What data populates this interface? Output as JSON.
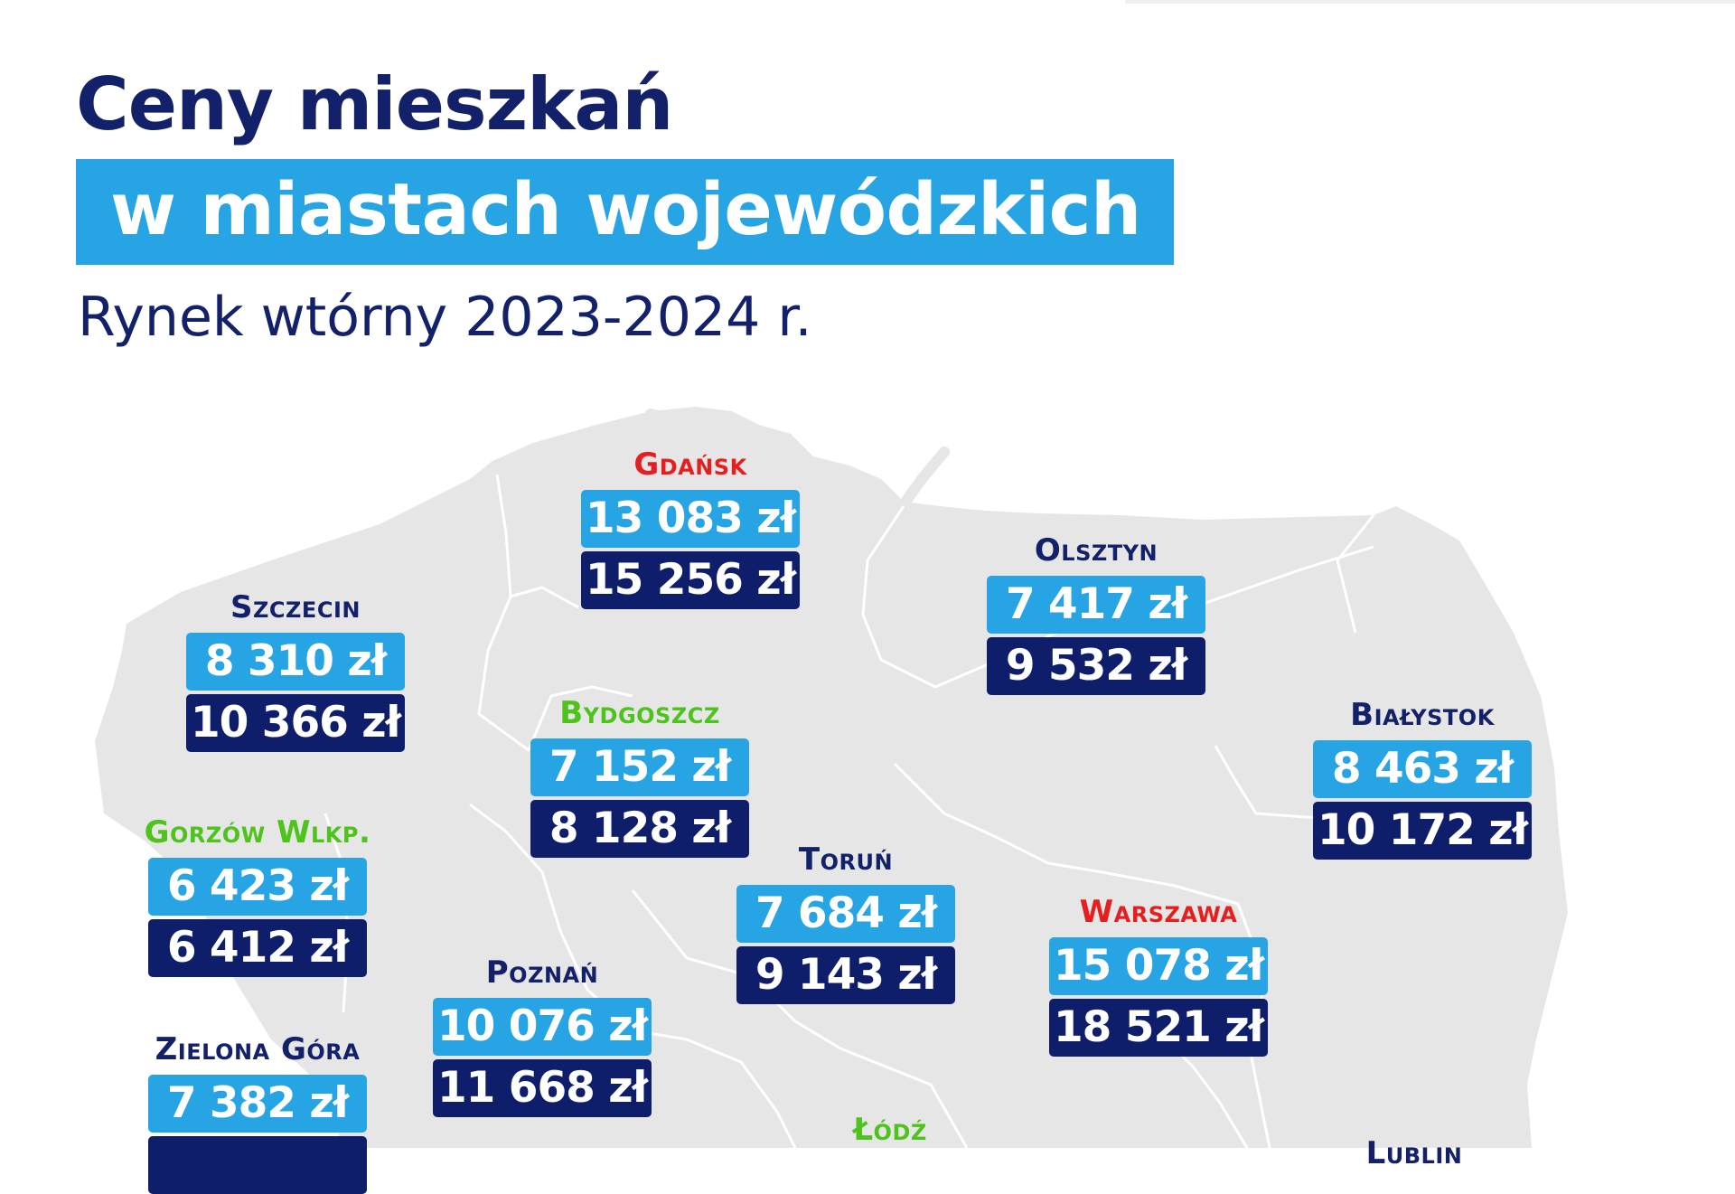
{
  "title_line1": "Ceny mieszkań",
  "title_line2": "w miastach wojewódzkich",
  "subtitle": "Rynek wtórny 2023-2024 r.",
  "colors": {
    "navy": "#13216a",
    "light_blue": "#26a4e3",
    "dark_blue": "#0f1e6b",
    "red": "#e51f1f",
    "green": "#4dc31c",
    "map_fill": "#e6e6e6"
  },
  "cities": [
    {
      "name": "Gdańsk",
      "name_color": "red",
      "price_2023": "13 083 zł",
      "price_2024": "15 256 zł"
    },
    {
      "name": "Szczecin",
      "name_color": "navy",
      "price_2023": "8 310 zł",
      "price_2024": "10 366 zł"
    },
    {
      "name": "Olsztyn",
      "name_color": "navy",
      "price_2023": "7 417 zł",
      "price_2024": "9 532 zł"
    },
    {
      "name": "Bydgoszcz",
      "name_color": "green",
      "price_2023": "7 152 zł",
      "price_2024": "8 128 zł"
    },
    {
      "name": "Białystok",
      "name_color": "navy",
      "price_2023": "8 463 zł",
      "price_2024": "10 172 zł"
    },
    {
      "name": "Gorzów Wlkp.",
      "name_color": "green",
      "price_2023": "6 423 zł",
      "price_2024": "6 412 zł"
    },
    {
      "name": "Toruń",
      "name_color": "navy",
      "price_2023": "7 684 zł",
      "price_2024": "9 143 zł"
    },
    {
      "name": "Warszawa",
      "name_color": "red",
      "price_2023": "15 078 zł",
      "price_2024": "18 521 zł"
    },
    {
      "name": "Poznań",
      "name_color": "navy",
      "price_2023": "10 076 zł",
      "price_2024": "11 668 zł"
    },
    {
      "name": "Zielona Góra",
      "name_color": "navy",
      "price_2023": "7 382 zł",
      "price_2024": ""
    },
    {
      "name": "Łódź",
      "name_color": "green"
    },
    {
      "name": "Lublin",
      "name_color": "navy"
    }
  ]
}
